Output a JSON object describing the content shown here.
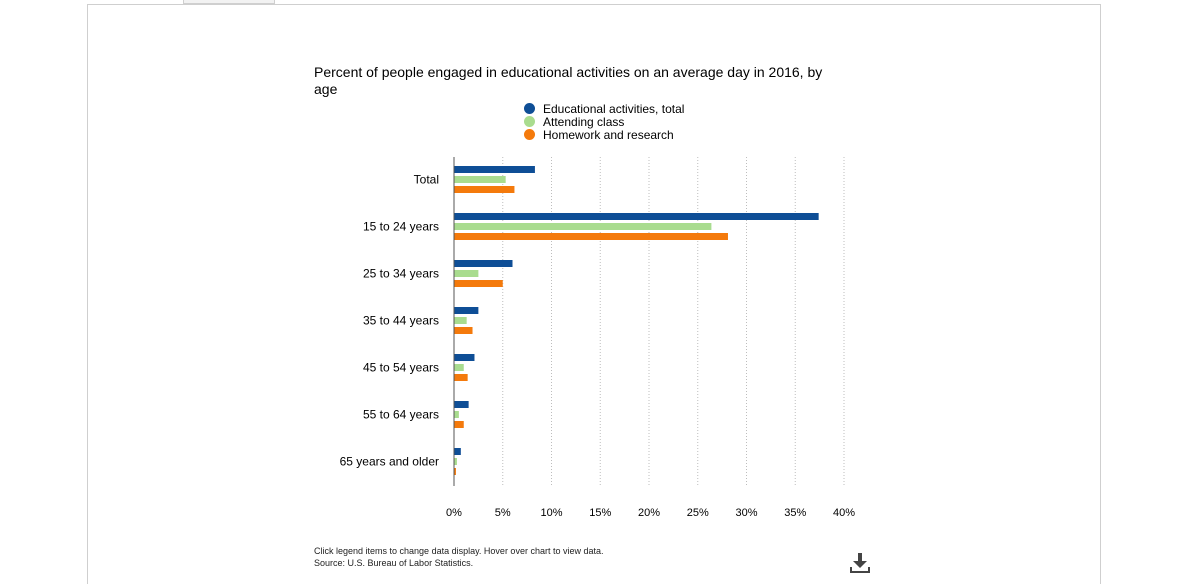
{
  "chart_data": {
    "type": "bar",
    "orientation": "horizontal",
    "title": "Percent of people engaged in educational activities on an average day in 2016, by age",
    "categories": [
      "Total",
      "15 to 24 years",
      "25 to 34 years",
      "35 to 44 years",
      "45 to 54 years",
      "55 to 64 years",
      "65 years and older"
    ],
    "series": [
      {
        "name": "Educational activities, total",
        "color": "#0e4e96",
        "values": [
          8.3,
          37.4,
          6.0,
          2.5,
          2.1,
          1.5,
          0.7
        ]
      },
      {
        "name": "Attending class",
        "color": "#a9dc8f",
        "values": [
          5.3,
          26.4,
          2.5,
          1.3,
          1.0,
          0.5,
          0.3
        ]
      },
      {
        "name": "Homework and research",
        "color": "#f47a0c",
        "values": [
          6.2,
          28.1,
          5.0,
          1.9,
          1.4,
          1.0,
          0.2
        ]
      }
    ],
    "xlim": [
      0,
      40
    ],
    "xticks": [
      "0%",
      "5%",
      "10%",
      "15%",
      "20%",
      "25%",
      "30%",
      "35%",
      "40%"
    ],
    "grid": true,
    "legend_position": "top-center"
  },
  "footnote": {
    "line1": "Click legend items to change data display. Hover over chart to view data.",
    "line2": "Source: U.S. Bureau of Labor Statistics."
  },
  "icons": {
    "download": "download-icon"
  }
}
